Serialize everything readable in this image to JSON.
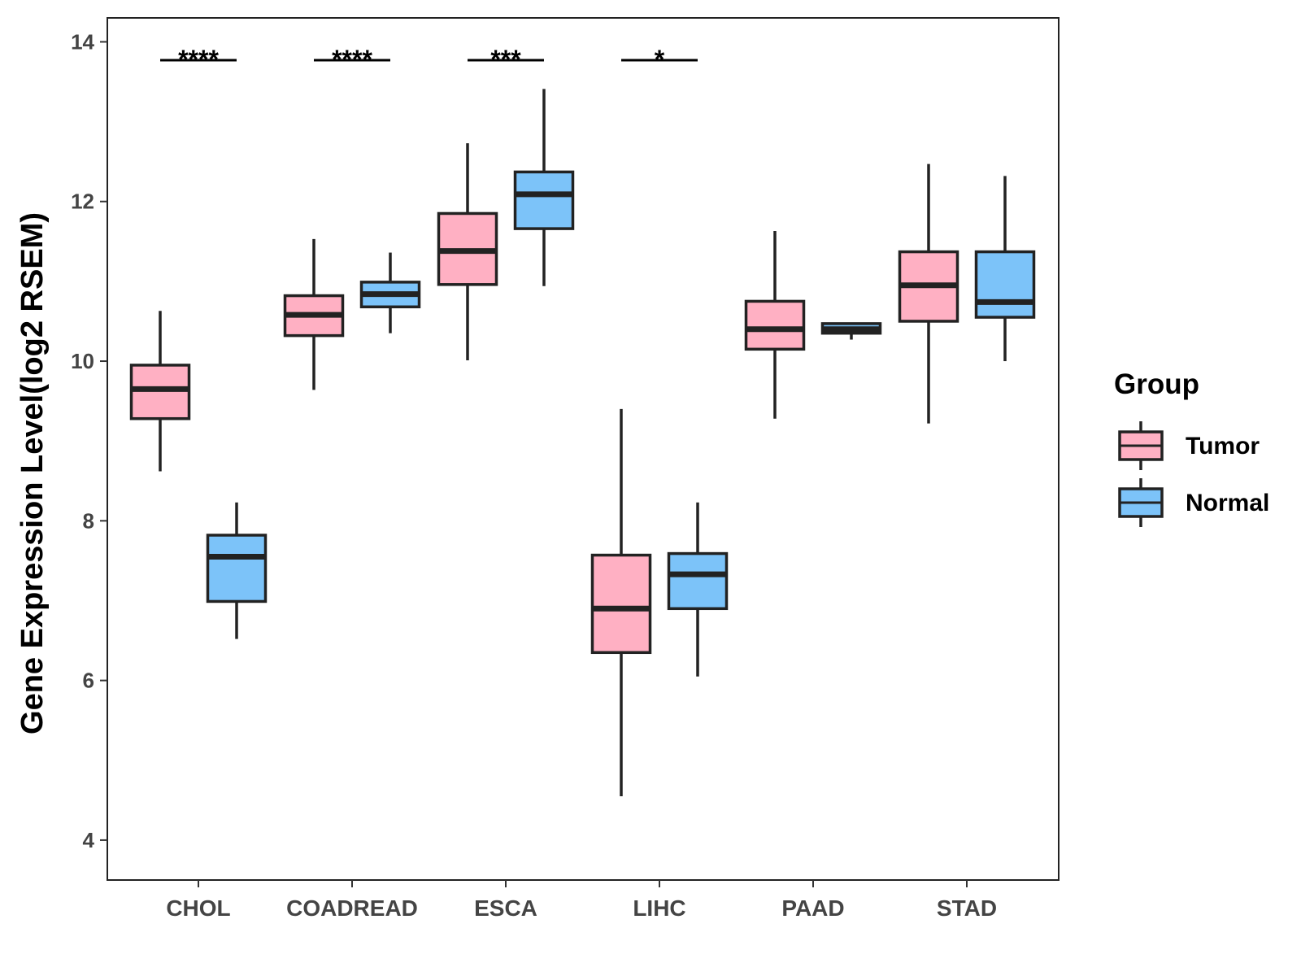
{
  "chart_data": {
    "type": "boxplot",
    "ylabel": "Gene Expression Level(log2 RSEM)",
    "xlabel": "",
    "ylim": [
      3.5,
      14.3
    ],
    "yticks": [
      4,
      6,
      8,
      10,
      12,
      14
    ],
    "categories": [
      "CHOL",
      "COADREAD",
      "ESCA",
      "LIHC",
      "PAAD",
      "STAD"
    ],
    "series": [
      {
        "name": "Tumor",
        "color": "#FFB0C3",
        "boxes": [
          {
            "min": 8.62,
            "q1": 9.28,
            "median": 9.65,
            "q3": 9.95,
            "max": 10.63
          },
          {
            "min": 9.64,
            "q1": 10.32,
            "median": 10.58,
            "q3": 10.82,
            "max": 11.53
          },
          {
            "min": 10.01,
            "q1": 10.96,
            "median": 11.38,
            "q3": 11.85,
            "max": 12.73
          },
          {
            "min": 4.55,
            "q1": 6.35,
            "median": 6.9,
            "q3": 7.57,
            "max": 9.4
          },
          {
            "min": 9.28,
            "q1": 10.15,
            "median": 10.4,
            "q3": 10.75,
            "max": 11.63
          },
          {
            "min": 9.22,
            "q1": 10.5,
            "median": 10.95,
            "q3": 11.37,
            "max": 12.47
          }
        ]
      },
      {
        "name": "Normal",
        "color": "#7CC3F9",
        "boxes": [
          {
            "min": 6.52,
            "q1": 6.99,
            "median": 7.55,
            "q3": 7.82,
            "max": 8.23
          },
          {
            "min": 10.35,
            "q1": 10.68,
            "median": 10.84,
            "q3": 10.99,
            "max": 11.36
          },
          {
            "min": 10.94,
            "q1": 11.66,
            "median": 12.09,
            "q3": 12.37,
            "max": 13.41
          },
          {
            "min": 6.05,
            "q1": 6.9,
            "median": 7.33,
            "q3": 7.59,
            "max": 8.23
          },
          {
            "min": 10.27,
            "q1": 10.35,
            "median": 10.4,
            "q3": 10.47,
            "max": 10.47
          },
          {
            "min": 10.0,
            "q1": 10.55,
            "median": 10.74,
            "q3": 11.37,
            "max": 12.32
          }
        ]
      }
    ],
    "significance": [
      {
        "category": "CHOL",
        "label": "****",
        "y": 13.77
      },
      {
        "category": "COADREAD",
        "label": "****",
        "y": 13.77
      },
      {
        "category": "ESCA",
        "label": "***",
        "y": 13.77
      },
      {
        "category": "LIHC",
        "label": "*",
        "y": 13.77
      }
    ],
    "legend": {
      "title": "Group",
      "position": "right",
      "items": [
        "Tumor",
        "Normal"
      ]
    }
  }
}
